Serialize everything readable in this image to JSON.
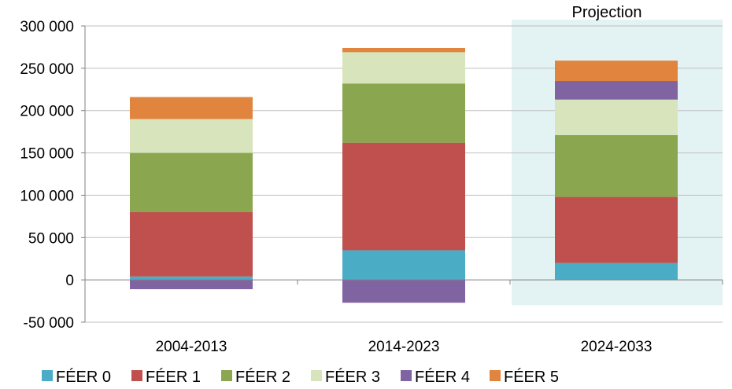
{
  "chart_data": {
    "type": "bar",
    "stacked": true,
    "categories": [
      "2004-2013",
      "2014-2023",
      "2024-2033"
    ],
    "series": [
      {
        "name": "FÉER 0",
        "color": "#4bacc6",
        "values": [
          4000,
          35000,
          20000
        ]
      },
      {
        "name": "FÉER 1",
        "color": "#c0504d",
        "values": [
          76000,
          127000,
          78000
        ]
      },
      {
        "name": "FÉER 2",
        "color": "#8aa64e",
        "values": [
          70000,
          70000,
          73000
        ]
      },
      {
        "name": "FÉER 3",
        "color": "#d8e4bc",
        "values": [
          40000,
          37000,
          42000
        ]
      },
      {
        "name": "FÉER 4",
        "color": "#8064a2",
        "values": [
          -11000,
          -27000,
          22000
        ]
      },
      {
        "name": "FÉER 5",
        "color": "#e0843e",
        "values": [
          26000,
          5000,
          24000
        ]
      }
    ],
    "ylim": [
      -50000,
      300000
    ],
    "yticks": [
      -50000,
      0,
      50000,
      100000,
      150000,
      200000,
      250000,
      300000
    ],
    "ytick_labels": [
      "-50 000",
      "0",
      "50 000",
      "100 000",
      "150 000",
      "200 000",
      "250 000",
      "300 000"
    ],
    "grid": true,
    "legend_position": "bottom",
    "annotation": {
      "label": "Projection",
      "category": "2024-2033",
      "shade_color": "#e3f2f3"
    },
    "title": "",
    "xlabel": "",
    "ylabel": ""
  }
}
